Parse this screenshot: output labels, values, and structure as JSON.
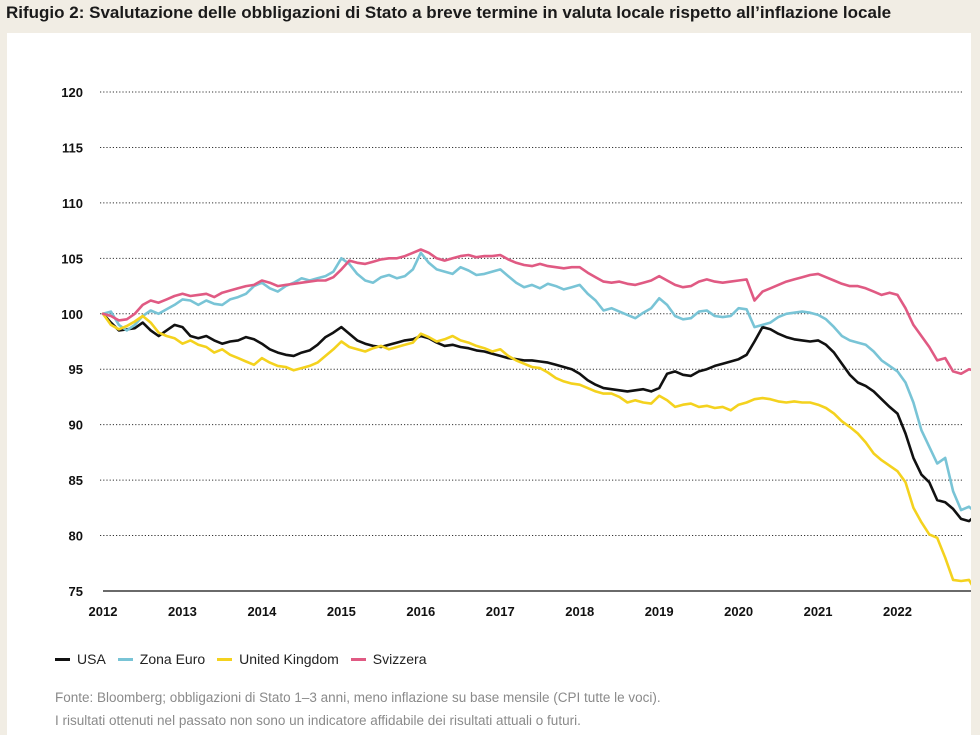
{
  "title": "Rifugio 2: Svalutazione delle obbligazioni di Stato a breve termine in valuta locale rispetto all’inflazione locale",
  "footnote_1": "Fonte: Bloomberg; obbligazioni di Stato 1–3 anni, meno inflazione su base mensile (CPI tutte le voci).",
  "footnote_2": "I risultati ottenuti nel passato non sono un indicatore affidabile dei risultati attuali o futuri.",
  "chart_data": {
    "type": "line",
    "title": "Rifugio 2: Svalutazione delle obbligazioni di Stato a breve termine in valuta locale rispetto all’inflazione locale",
    "xlabel": "",
    "ylabel": "",
    "xlim": [
      2012,
      2022.95
    ],
    "ylim": [
      75,
      120
    ],
    "y_ticks": [
      75,
      80,
      85,
      90,
      95,
      100,
      105,
      110,
      115,
      120
    ],
    "x_ticks": [
      "2012",
      "2013",
      "2014",
      "2015",
      "2016",
      "2017",
      "2018",
      "2019",
      "2020",
      "2021",
      "2022"
    ],
    "grid": "horizontal dotted",
    "legend_position": "bottom-left",
    "series": [
      {
        "name": "USA",
        "color": "#111111",
        "x": [
          2012.0,
          2012.1,
          2012.2,
          2012.3,
          2012.4,
          2012.5,
          2012.6,
          2012.7,
          2012.8,
          2012.9,
          2013.0,
          2013.1,
          2013.2,
          2013.3,
          2013.4,
          2013.5,
          2013.6,
          2013.7,
          2013.8,
          2013.9,
          2014.0,
          2014.1,
          2014.2,
          2014.3,
          2014.4,
          2014.5,
          2014.6,
          2014.7,
          2014.8,
          2014.9,
          2015.0,
          2015.1,
          2015.2,
          2015.3,
          2015.4,
          2015.5,
          2015.6,
          2015.7,
          2015.8,
          2015.9,
          2016.0,
          2016.1,
          2016.2,
          2016.3,
          2016.4,
          2016.5,
          2016.6,
          2016.7,
          2016.8,
          2016.9,
          2017.0,
          2017.1,
          2017.2,
          2017.3,
          2017.4,
          2017.5,
          2017.6,
          2017.7,
          2017.8,
          2017.9,
          2018.0,
          2018.1,
          2018.2,
          2018.3,
          2018.4,
          2018.5,
          2018.6,
          2018.7,
          2018.8,
          2018.9,
          2019.0,
          2019.1,
          2019.2,
          2019.3,
          2019.4,
          2019.5,
          2019.6,
          2019.7,
          2019.8,
          2019.9,
          2020.0,
          2020.1,
          2020.2,
          2020.3,
          2020.4,
          2020.5,
          2020.6,
          2020.7,
          2020.8,
          2020.9,
          2021.0,
          2021.1,
          2021.2,
          2021.3,
          2021.4,
          2021.5,
          2021.6,
          2021.7,
          2021.8,
          2021.9,
          2022.0,
          2022.1,
          2022.2,
          2022.3,
          2022.4,
          2022.5,
          2022.6,
          2022.7,
          2022.8,
          2022.9,
          2022.95
        ],
        "values": [
          100.0,
          99.2,
          98.5,
          98.6,
          98.7,
          99.2,
          98.5,
          98.0,
          98.5,
          99.0,
          98.8,
          98.0,
          97.8,
          98.0,
          97.6,
          97.3,
          97.5,
          97.6,
          97.9,
          97.7,
          97.3,
          96.8,
          96.5,
          96.3,
          96.2,
          96.5,
          96.7,
          97.2,
          97.9,
          98.3,
          98.8,
          98.2,
          97.6,
          97.3,
          97.1,
          97.0,
          97.2,
          97.4,
          97.6,
          97.7,
          98.0,
          97.8,
          97.4,
          97.1,
          97.2,
          97.0,
          96.9,
          96.7,
          96.6,
          96.4,
          96.2,
          96.0,
          95.9,
          95.8,
          95.8,
          95.7,
          95.6,
          95.4,
          95.2,
          95.0,
          94.6,
          94.0,
          93.6,
          93.3,
          93.2,
          93.1,
          93.0,
          93.1,
          93.2,
          93.0,
          93.3,
          94.6,
          94.8,
          94.5,
          94.4,
          94.8,
          95.0,
          95.3,
          95.5,
          95.7,
          95.9,
          96.3,
          97.5,
          98.8,
          98.6,
          98.2,
          97.9,
          97.7,
          97.6,
          97.5,
          97.6,
          97.2,
          96.5,
          95.5,
          94.5,
          93.8,
          93.5,
          93.0,
          92.3,
          91.6,
          91.0,
          89.2,
          87.0,
          85.5,
          84.8,
          83.2,
          83.0,
          82.4,
          81.5,
          81.3,
          81.6
        ]
      },
      {
        "name": "Zona Euro",
        "color": "#79c4d6",
        "x": [
          2012.0,
          2012.1,
          2012.2,
          2012.3,
          2012.4,
          2012.5,
          2012.6,
          2012.7,
          2012.8,
          2012.9,
          2013.0,
          2013.1,
          2013.2,
          2013.3,
          2013.4,
          2013.5,
          2013.6,
          2013.7,
          2013.8,
          2013.9,
          2014.0,
          2014.1,
          2014.2,
          2014.3,
          2014.4,
          2014.5,
          2014.6,
          2014.7,
          2014.8,
          2014.9,
          2015.0,
          2015.1,
          2015.2,
          2015.3,
          2015.4,
          2015.5,
          2015.6,
          2015.7,
          2015.8,
          2015.9,
          2016.0,
          2016.1,
          2016.2,
          2016.3,
          2016.4,
          2016.5,
          2016.6,
          2016.7,
          2016.8,
          2016.9,
          2017.0,
          2017.1,
          2017.2,
          2017.3,
          2017.4,
          2017.5,
          2017.6,
          2017.7,
          2017.8,
          2017.9,
          2018.0,
          2018.1,
          2018.2,
          2018.3,
          2018.4,
          2018.5,
          2018.6,
          2018.7,
          2018.8,
          2018.9,
          2019.0,
          2019.1,
          2019.2,
          2019.3,
          2019.4,
          2019.5,
          2019.6,
          2019.7,
          2019.8,
          2019.9,
          2020.0,
          2020.1,
          2020.2,
          2020.3,
          2020.4,
          2020.5,
          2020.6,
          2020.7,
          2020.8,
          2020.9,
          2021.0,
          2021.1,
          2021.2,
          2021.3,
          2021.4,
          2021.5,
          2021.6,
          2021.7,
          2021.8,
          2021.9,
          2022.0,
          2022.1,
          2022.2,
          2022.3,
          2022.4,
          2022.5,
          2022.6,
          2022.7,
          2022.8,
          2022.9,
          2022.95
        ],
        "values": [
          100.0,
          100.2,
          99.0,
          98.5,
          99.0,
          99.8,
          100.3,
          100.0,
          100.4,
          100.8,
          101.3,
          101.2,
          100.8,
          101.2,
          100.9,
          100.8,
          101.3,
          101.5,
          101.8,
          102.5,
          102.8,
          102.3,
          102.0,
          102.5,
          102.8,
          103.2,
          103.0,
          103.2,
          103.4,
          103.8,
          105.0,
          104.5,
          103.6,
          103.0,
          102.8,
          103.3,
          103.5,
          103.2,
          103.4,
          104.0,
          105.5,
          104.6,
          104.0,
          103.8,
          103.6,
          104.2,
          103.9,
          103.5,
          103.6,
          103.8,
          104.0,
          103.4,
          102.8,
          102.4,
          102.6,
          102.3,
          102.7,
          102.5,
          102.2,
          102.4,
          102.6,
          101.8,
          101.2,
          100.3,
          100.5,
          100.2,
          99.9,
          99.6,
          100.1,
          100.5,
          101.4,
          100.8,
          99.8,
          99.5,
          99.6,
          100.2,
          100.3,
          99.8,
          99.7,
          99.8,
          100.5,
          100.4,
          98.8,
          99.0,
          99.2,
          99.7,
          100.0,
          100.1,
          100.2,
          100.1,
          99.9,
          99.5,
          98.8,
          98.0,
          97.6,
          97.4,
          97.2,
          96.6,
          95.8,
          95.3,
          94.8,
          93.8,
          92.0,
          89.5,
          88.0,
          86.5,
          87.0,
          84.0,
          82.3,
          82.6,
          82.3
        ]
      },
      {
        "name": "United Kingdom",
        "color": "#f4d21e",
        "x": [
          2012.0,
          2012.1,
          2012.2,
          2012.3,
          2012.4,
          2012.5,
          2012.6,
          2012.7,
          2012.8,
          2012.9,
          2013.0,
          2013.1,
          2013.2,
          2013.3,
          2013.4,
          2013.5,
          2013.6,
          2013.7,
          2013.8,
          2013.9,
          2014.0,
          2014.1,
          2014.2,
          2014.3,
          2014.4,
          2014.5,
          2014.6,
          2014.7,
          2014.8,
          2014.9,
          2015.0,
          2015.1,
          2015.2,
          2015.3,
          2015.4,
          2015.5,
          2015.6,
          2015.7,
          2015.8,
          2015.9,
          2016.0,
          2016.1,
          2016.2,
          2016.3,
          2016.4,
          2016.5,
          2016.6,
          2016.7,
          2016.8,
          2016.9,
          2017.0,
          2017.1,
          2017.2,
          2017.3,
          2017.4,
          2017.5,
          2017.6,
          2017.7,
          2017.8,
          2017.9,
          2018.0,
          2018.1,
          2018.2,
          2018.3,
          2018.4,
          2018.5,
          2018.6,
          2018.7,
          2018.8,
          2018.9,
          2019.0,
          2019.1,
          2019.2,
          2019.3,
          2019.4,
          2019.5,
          2019.6,
          2019.7,
          2019.8,
          2019.9,
          2020.0,
          2020.1,
          2020.2,
          2020.3,
          2020.4,
          2020.5,
          2020.6,
          2020.7,
          2020.8,
          2020.9,
          2021.0,
          2021.1,
          2021.2,
          2021.3,
          2021.4,
          2021.5,
          2021.6,
          2021.7,
          2021.8,
          2021.9,
          2022.0,
          2022.1,
          2022.2,
          2022.3,
          2022.4,
          2022.5,
          2022.6,
          2022.7,
          2022.8,
          2022.9,
          2022.95
        ],
        "values": [
          100.0,
          99.0,
          98.6,
          98.9,
          99.3,
          99.8,
          99.2,
          98.3,
          98.0,
          97.8,
          97.3,
          97.6,
          97.2,
          97.0,
          96.5,
          96.8,
          96.3,
          96.0,
          95.7,
          95.4,
          96.0,
          95.6,
          95.3,
          95.2,
          94.9,
          95.1,
          95.3,
          95.6,
          96.2,
          96.8,
          97.5,
          97.0,
          96.8,
          96.6,
          96.9,
          97.1,
          96.8,
          97.0,
          97.2,
          97.4,
          98.2,
          97.9,
          97.5,
          97.7,
          98.0,
          97.6,
          97.4,
          97.1,
          96.9,
          96.6,
          96.8,
          96.2,
          95.8,
          95.5,
          95.2,
          95.1,
          94.7,
          94.2,
          93.9,
          93.7,
          93.6,
          93.3,
          93.0,
          92.8,
          92.8,
          92.5,
          92.0,
          92.2,
          92.0,
          91.9,
          92.6,
          92.2,
          91.6,
          91.8,
          91.9,
          91.6,
          91.7,
          91.5,
          91.6,
          91.3,
          91.8,
          92.0,
          92.3,
          92.4,
          92.3,
          92.1,
          92.0,
          92.1,
          92.0,
          92.0,
          91.8,
          91.5,
          91.0,
          90.3,
          89.8,
          89.2,
          88.4,
          87.4,
          86.8,
          86.3,
          85.8,
          84.8,
          82.5,
          81.2,
          80.1,
          79.8,
          78.0,
          76.0,
          75.9,
          76.0,
          75.4
        ]
      },
      {
        "name": "Svizzera",
        "color": "#e05a83",
        "x": [
          2012.0,
          2012.1,
          2012.2,
          2012.3,
          2012.4,
          2012.5,
          2012.6,
          2012.7,
          2012.8,
          2012.9,
          2013.0,
          2013.1,
          2013.2,
          2013.3,
          2013.4,
          2013.5,
          2013.6,
          2013.7,
          2013.8,
          2013.9,
          2014.0,
          2014.1,
          2014.2,
          2014.3,
          2014.4,
          2014.5,
          2014.6,
          2014.7,
          2014.8,
          2014.9,
          2015.0,
          2015.1,
          2015.2,
          2015.3,
          2015.4,
          2015.5,
          2015.6,
          2015.7,
          2015.8,
          2015.9,
          2016.0,
          2016.1,
          2016.2,
          2016.3,
          2016.4,
          2016.5,
          2016.6,
          2016.7,
          2016.8,
          2016.9,
          2017.0,
          2017.1,
          2017.2,
          2017.3,
          2017.4,
          2017.5,
          2017.6,
          2017.7,
          2017.8,
          2017.9,
          2018.0,
          2018.1,
          2018.2,
          2018.3,
          2018.4,
          2018.5,
          2018.6,
          2018.7,
          2018.8,
          2018.9,
          2019.0,
          2019.1,
          2019.2,
          2019.3,
          2019.4,
          2019.5,
          2019.6,
          2019.7,
          2019.8,
          2019.9,
          2020.0,
          2020.1,
          2020.2,
          2020.3,
          2020.4,
          2020.5,
          2020.6,
          2020.7,
          2020.8,
          2020.9,
          2021.0,
          2021.1,
          2021.2,
          2021.3,
          2021.4,
          2021.5,
          2021.6,
          2021.7,
          2021.8,
          2021.9,
          2022.0,
          2022.1,
          2022.2,
          2022.3,
          2022.4,
          2022.5,
          2022.6,
          2022.7,
          2022.8,
          2022.9,
          2022.95
        ],
        "values": [
          100.0,
          99.8,
          99.4,
          99.5,
          100.0,
          100.8,
          101.2,
          101.0,
          101.3,
          101.6,
          101.8,
          101.6,
          101.7,
          101.8,
          101.5,
          101.9,
          102.1,
          102.3,
          102.5,
          102.6,
          103.0,
          102.8,
          102.5,
          102.6,
          102.7,
          102.8,
          102.9,
          103.0,
          103.0,
          103.3,
          104.0,
          104.8,
          104.6,
          104.5,
          104.7,
          104.9,
          105.0,
          105.0,
          105.2,
          105.5,
          105.8,
          105.5,
          105.0,
          104.8,
          105.0,
          105.2,
          105.3,
          105.1,
          105.2,
          105.2,
          105.3,
          104.9,
          104.6,
          104.4,
          104.3,
          104.5,
          104.3,
          104.2,
          104.1,
          104.2,
          104.2,
          103.7,
          103.3,
          102.9,
          102.8,
          102.9,
          102.7,
          102.6,
          102.8,
          103.0,
          103.4,
          103.0,
          102.6,
          102.4,
          102.5,
          102.9,
          103.1,
          102.9,
          102.8,
          102.9,
          103.0,
          103.1,
          101.2,
          102.0,
          102.3,
          102.6,
          102.9,
          103.1,
          103.3,
          103.5,
          103.6,
          103.3,
          103.0,
          102.7,
          102.5,
          102.5,
          102.3,
          102.0,
          101.7,
          101.9,
          101.7,
          100.5,
          99.0,
          98.0,
          97.0,
          95.8,
          96.0,
          94.8,
          94.6,
          95.0,
          94.9
        ]
      }
    ]
  }
}
